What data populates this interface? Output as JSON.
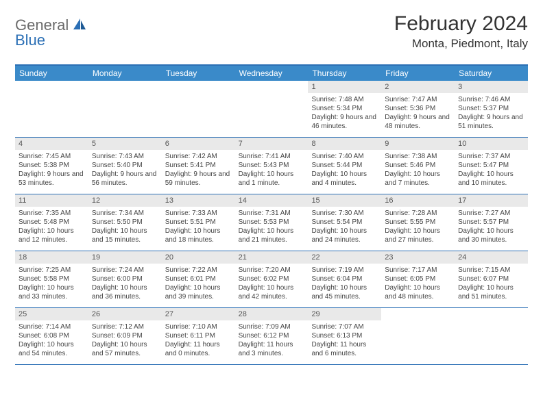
{
  "logo": {
    "text1": "General",
    "text2": "Blue"
  },
  "title": "February 2024",
  "location": "Monta, Piedmont, Italy",
  "colors": {
    "header_bar": "#3a8ac9",
    "border": "#2b6fb5",
    "daynum_bg": "#e9e9e9",
    "text": "#333333",
    "logo_gray": "#6b6b6b",
    "logo_blue": "#2b6fb5"
  },
  "dow": [
    "Sunday",
    "Monday",
    "Tuesday",
    "Wednesday",
    "Thursday",
    "Friday",
    "Saturday"
  ],
  "weeks": [
    [
      {
        "n": "",
        "sr": "",
        "ss": "",
        "dl": ""
      },
      {
        "n": "",
        "sr": "",
        "ss": "",
        "dl": ""
      },
      {
        "n": "",
        "sr": "",
        "ss": "",
        "dl": ""
      },
      {
        "n": "",
        "sr": "",
        "ss": "",
        "dl": ""
      },
      {
        "n": "1",
        "sr": "Sunrise: 7:48 AM",
        "ss": "Sunset: 5:34 PM",
        "dl": "Daylight: 9 hours and 46 minutes."
      },
      {
        "n": "2",
        "sr": "Sunrise: 7:47 AM",
        "ss": "Sunset: 5:36 PM",
        "dl": "Daylight: 9 hours and 48 minutes."
      },
      {
        "n": "3",
        "sr": "Sunrise: 7:46 AM",
        "ss": "Sunset: 5:37 PM",
        "dl": "Daylight: 9 hours and 51 minutes."
      }
    ],
    [
      {
        "n": "4",
        "sr": "Sunrise: 7:45 AM",
        "ss": "Sunset: 5:38 PM",
        "dl": "Daylight: 9 hours and 53 minutes."
      },
      {
        "n": "5",
        "sr": "Sunrise: 7:43 AM",
        "ss": "Sunset: 5:40 PM",
        "dl": "Daylight: 9 hours and 56 minutes."
      },
      {
        "n": "6",
        "sr": "Sunrise: 7:42 AM",
        "ss": "Sunset: 5:41 PM",
        "dl": "Daylight: 9 hours and 59 minutes."
      },
      {
        "n": "7",
        "sr": "Sunrise: 7:41 AM",
        "ss": "Sunset: 5:43 PM",
        "dl": "Daylight: 10 hours and 1 minute."
      },
      {
        "n": "8",
        "sr": "Sunrise: 7:40 AM",
        "ss": "Sunset: 5:44 PM",
        "dl": "Daylight: 10 hours and 4 minutes."
      },
      {
        "n": "9",
        "sr": "Sunrise: 7:38 AM",
        "ss": "Sunset: 5:46 PM",
        "dl": "Daylight: 10 hours and 7 minutes."
      },
      {
        "n": "10",
        "sr": "Sunrise: 7:37 AM",
        "ss": "Sunset: 5:47 PM",
        "dl": "Daylight: 10 hours and 10 minutes."
      }
    ],
    [
      {
        "n": "11",
        "sr": "Sunrise: 7:35 AM",
        "ss": "Sunset: 5:48 PM",
        "dl": "Daylight: 10 hours and 12 minutes."
      },
      {
        "n": "12",
        "sr": "Sunrise: 7:34 AM",
        "ss": "Sunset: 5:50 PM",
        "dl": "Daylight: 10 hours and 15 minutes."
      },
      {
        "n": "13",
        "sr": "Sunrise: 7:33 AM",
        "ss": "Sunset: 5:51 PM",
        "dl": "Daylight: 10 hours and 18 minutes."
      },
      {
        "n": "14",
        "sr": "Sunrise: 7:31 AM",
        "ss": "Sunset: 5:53 PM",
        "dl": "Daylight: 10 hours and 21 minutes."
      },
      {
        "n": "15",
        "sr": "Sunrise: 7:30 AM",
        "ss": "Sunset: 5:54 PM",
        "dl": "Daylight: 10 hours and 24 minutes."
      },
      {
        "n": "16",
        "sr": "Sunrise: 7:28 AM",
        "ss": "Sunset: 5:55 PM",
        "dl": "Daylight: 10 hours and 27 minutes."
      },
      {
        "n": "17",
        "sr": "Sunrise: 7:27 AM",
        "ss": "Sunset: 5:57 PM",
        "dl": "Daylight: 10 hours and 30 minutes."
      }
    ],
    [
      {
        "n": "18",
        "sr": "Sunrise: 7:25 AM",
        "ss": "Sunset: 5:58 PM",
        "dl": "Daylight: 10 hours and 33 minutes."
      },
      {
        "n": "19",
        "sr": "Sunrise: 7:24 AM",
        "ss": "Sunset: 6:00 PM",
        "dl": "Daylight: 10 hours and 36 minutes."
      },
      {
        "n": "20",
        "sr": "Sunrise: 7:22 AM",
        "ss": "Sunset: 6:01 PM",
        "dl": "Daylight: 10 hours and 39 minutes."
      },
      {
        "n": "21",
        "sr": "Sunrise: 7:20 AM",
        "ss": "Sunset: 6:02 PM",
        "dl": "Daylight: 10 hours and 42 minutes."
      },
      {
        "n": "22",
        "sr": "Sunrise: 7:19 AM",
        "ss": "Sunset: 6:04 PM",
        "dl": "Daylight: 10 hours and 45 minutes."
      },
      {
        "n": "23",
        "sr": "Sunrise: 7:17 AM",
        "ss": "Sunset: 6:05 PM",
        "dl": "Daylight: 10 hours and 48 minutes."
      },
      {
        "n": "24",
        "sr": "Sunrise: 7:15 AM",
        "ss": "Sunset: 6:07 PM",
        "dl": "Daylight: 10 hours and 51 minutes."
      }
    ],
    [
      {
        "n": "25",
        "sr": "Sunrise: 7:14 AM",
        "ss": "Sunset: 6:08 PM",
        "dl": "Daylight: 10 hours and 54 minutes."
      },
      {
        "n": "26",
        "sr": "Sunrise: 7:12 AM",
        "ss": "Sunset: 6:09 PM",
        "dl": "Daylight: 10 hours and 57 minutes."
      },
      {
        "n": "27",
        "sr": "Sunrise: 7:10 AM",
        "ss": "Sunset: 6:11 PM",
        "dl": "Daylight: 11 hours and 0 minutes."
      },
      {
        "n": "28",
        "sr": "Sunrise: 7:09 AM",
        "ss": "Sunset: 6:12 PM",
        "dl": "Daylight: 11 hours and 3 minutes."
      },
      {
        "n": "29",
        "sr": "Sunrise: 7:07 AM",
        "ss": "Sunset: 6:13 PM",
        "dl": "Daylight: 11 hours and 6 minutes."
      },
      {
        "n": "",
        "sr": "",
        "ss": "",
        "dl": ""
      },
      {
        "n": "",
        "sr": "",
        "ss": "",
        "dl": ""
      }
    ]
  ]
}
